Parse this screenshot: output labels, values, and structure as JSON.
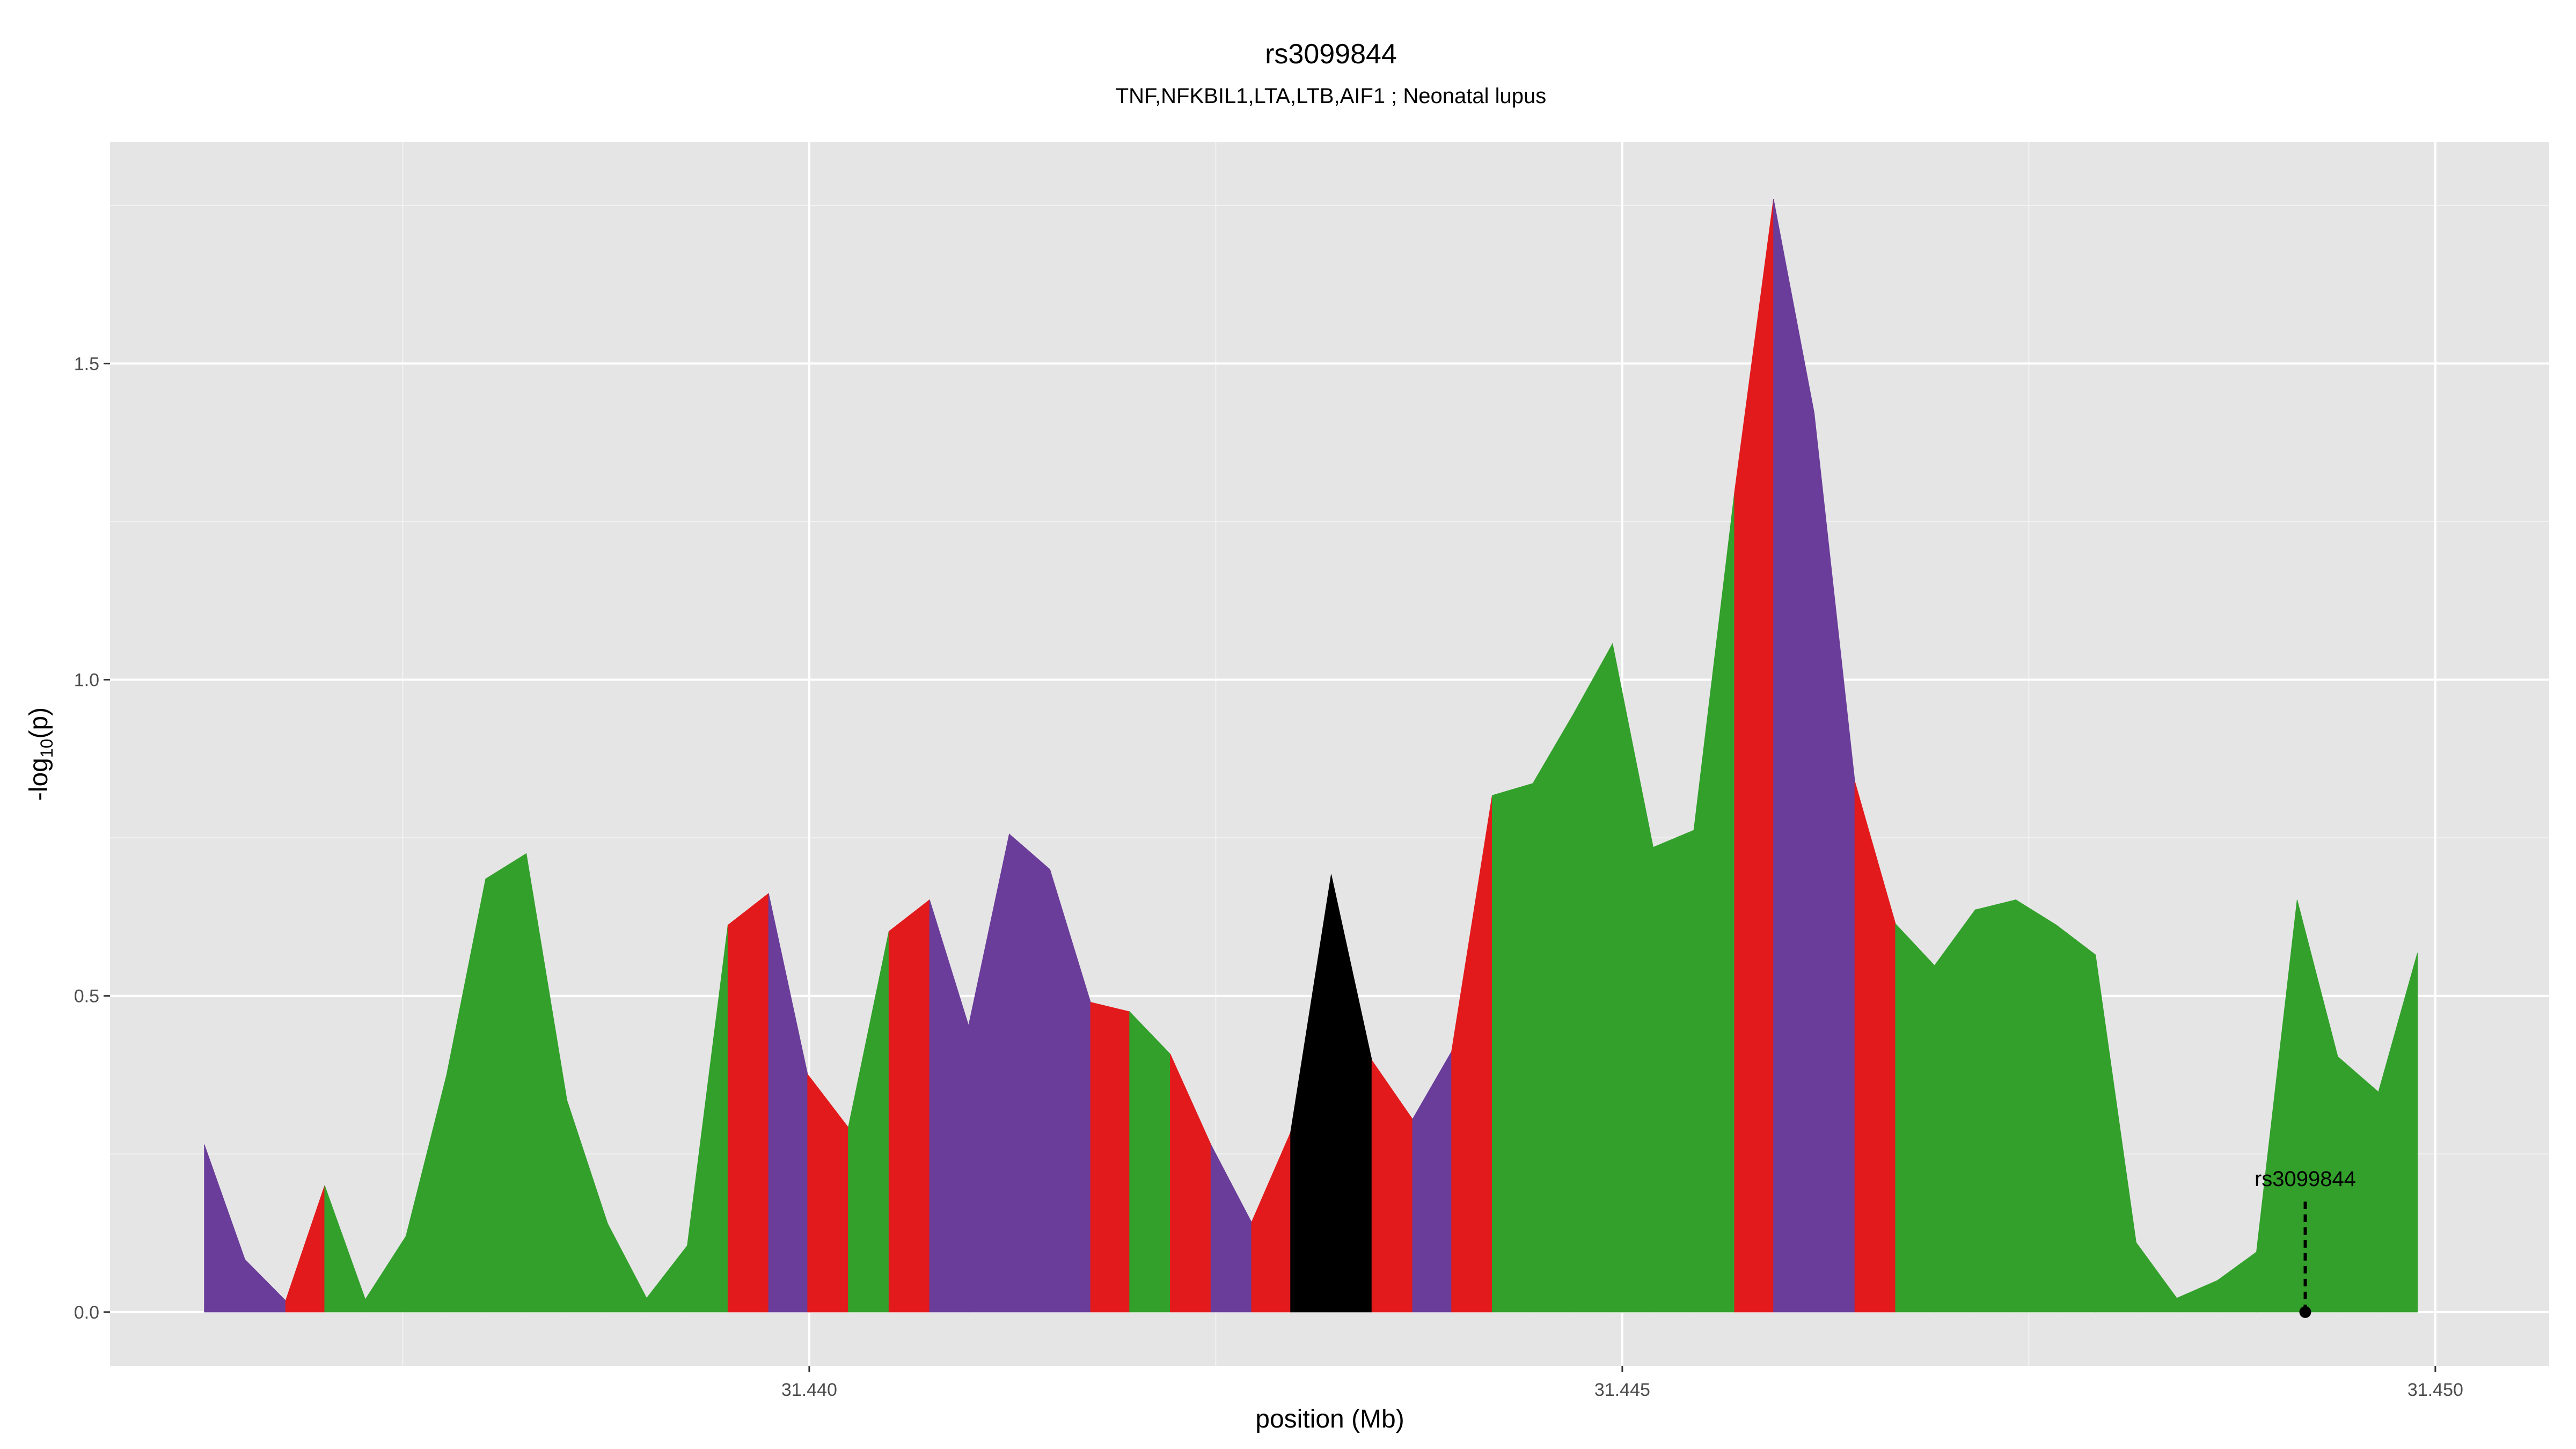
{
  "chart_data": {
    "type": "area",
    "title": "rs3099844",
    "subtitle": "TNF,NFKBIL1,LTA,LTB,AIF1 ; Neonatal lupus",
    "xlabel": "position (Mb)",
    "ylabel_main": "-log",
    "ylabel_sub": "10",
    "ylabel_tail": "(p)",
    "xlim": [
      31.4357,
      31.4507
    ],
    "ylim": [
      -0.085,
      1.85
    ],
    "grid": true,
    "x_ticks": [
      {
        "value": 31.44,
        "label": "31.440"
      },
      {
        "value": 31.445,
        "label": "31.445"
      },
      {
        "value": 31.45,
        "label": "31.450"
      }
    ],
    "y_ticks": [
      {
        "value": 0.0,
        "label": "0.0"
      },
      {
        "value": 0.5,
        "label": "0.5"
      },
      {
        "value": 1.0,
        "label": "1.0"
      },
      {
        "value": 1.5,
        "label": "1.5"
      }
    ],
    "x": [
      31.43628,
      31.43653,
      31.43678,
      31.43702,
      31.43727,
      31.43752,
      31.43777,
      31.43801,
      31.43826,
      31.43851,
      31.43876,
      31.439,
      31.43925,
      31.4395,
      31.43975,
      31.43999,
      31.44024,
      31.44049,
      31.44074,
      31.44098,
      31.44123,
      31.44148,
      31.44173,
      31.44197,
      31.44222,
      31.44247,
      31.44272,
      31.44296,
      31.44321,
      31.44346,
      31.44371,
      31.44395,
      31.4442,
      31.44445,
      31.4447,
      31.44494,
      31.44519,
      31.44544,
      31.44569,
      31.44593,
      31.44618,
      31.44643,
      31.44668,
      31.44692,
      31.44717,
      31.44742,
      31.44767,
      31.44791,
      31.44816,
      31.44841,
      31.44866,
      31.4489,
      31.44915,
      31.4494,
      31.44965,
      31.44989
    ],
    "y": [
      0.265,
      0.083,
      0.018,
      0.2,
      0.02,
      0.12,
      0.375,
      0.685,
      0.725,
      0.335,
      0.14,
      0.022,
      0.105,
      0.612,
      0.662,
      0.376,
      0.292,
      0.602,
      0.652,
      0.453,
      0.756,
      0.7,
      0.49,
      0.475,
      0.408,
      0.265,
      0.142,
      0.284,
      0.692,
      0.398,
      0.305,
      0.412,
      0.817,
      0.836,
      0.946,
      1.057,
      0.735,
      0.762,
      1.296,
      1.76,
      1.422,
      0.839,
      0.614,
      0.548,
      0.636,
      0.652,
      0.612,
      0.565,
      0.11,
      0.022,
      0.05,
      0.095,
      0.652,
      0.404,
      0.348,
      0.568
    ],
    "colors": [
      "#6a3d9a",
      "#6a3d9a",
      "#e31a1c",
      "#33a02c",
      "#33a02c",
      "#33a02c",
      "#33a02c",
      "#33a02c",
      "#33a02c",
      "#33a02c",
      "#33a02c",
      "#33a02c",
      "#33a02c",
      "#e31a1c",
      "#6a3d9a",
      "#e31a1c",
      "#33a02c",
      "#e31a1c",
      "#6a3d9a",
      "#6a3d9a",
      "#6a3d9a",
      "#6a3d9a",
      "#e31a1c",
      "#33a02c",
      "#e31a1c",
      "#6a3d9a",
      "#e31a1c",
      "#000000",
      "#000000",
      "#e31a1c",
      "#6a3d9a",
      "#e31a1c",
      "#33a02c",
      "#33a02c",
      "#33a02c",
      "#33a02c",
      "#33a02c",
      "#33a02c",
      "#e31a1c",
      "#6a3d9a",
      "#6a3d9a",
      "#e31a1c",
      "#33a02c",
      "#33a02c",
      "#33a02c",
      "#33a02c",
      "#33a02c",
      "#33a02c",
      "#33a02c",
      "#33a02c",
      "#33a02c",
      "#33a02c",
      "#33a02c",
      "#33a02c",
      "#33a02c"
    ],
    "annotation": {
      "label": "rs3099844",
      "x": 31.4492,
      "y": 0.0
    },
    "style": {
      "panel_bg": "#e5e5e5",
      "grid_major": "#ffffff",
      "grid_minor": "#f2f2f2"
    }
  }
}
